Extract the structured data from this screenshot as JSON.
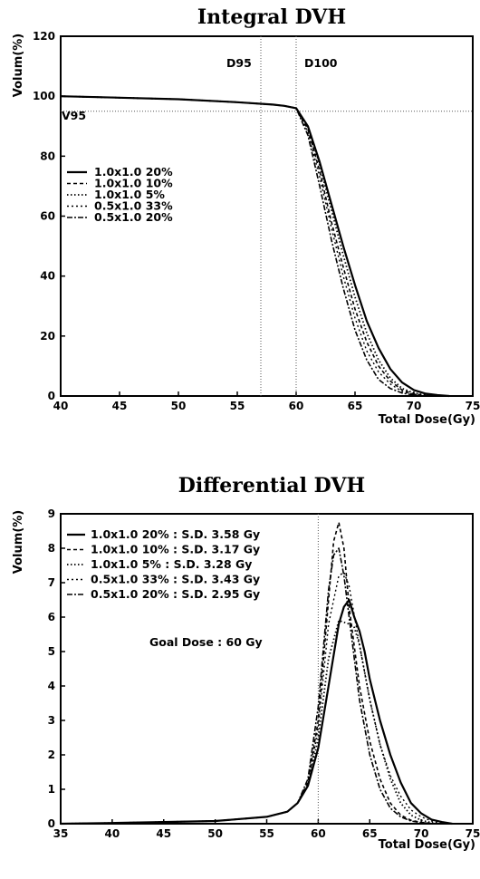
{
  "chart_data": [
    {
      "type": "line",
      "title": "Integral DVH",
      "xlabel": "Total Dose(Gy)",
      "ylabel": "Volum(%)",
      "xlim": [
        40,
        75
      ],
      "ylim": [
        0,
        120
      ],
      "xticks": [
        40,
        45,
        50,
        55,
        60,
        65,
        70,
        75
      ],
      "yticks": [
        0,
        20,
        40,
        60,
        80,
        100,
        120
      ],
      "grid": false,
      "legend_placement": "left",
      "annotations": {
        "vertical_lines": [
          {
            "label": "D95",
            "x": 57
          },
          {
            "label": "D100",
            "x": 60
          }
        ],
        "horizontal_lines": [
          {
            "label": "V95",
            "y": 95
          }
        ]
      },
      "series": [
        {
          "name": "1.0x1.0 20%",
          "x": [
            40,
            45,
            50,
            55,
            58,
            59,
            60,
            61,
            62,
            63,
            64,
            65,
            66,
            67,
            68,
            69,
            70,
            71,
            72,
            73
          ],
          "y": [
            100,
            99.5,
            99,
            98,
            97.2,
            96.8,
            96,
            90,
            78,
            64,
            50,
            37,
            25,
            16,
            9,
            4.5,
            2,
            0.8,
            0.3,
            0
          ]
        },
        {
          "name": "1.0x1.0 10%",
          "x": [
            40,
            45,
            50,
            55,
            58,
            59,
            60,
            61,
            62,
            63,
            64,
            65,
            66,
            67,
            68,
            69,
            70,
            71,
            72
          ],
          "y": [
            100,
            99.5,
            99,
            98,
            97.2,
            96.8,
            96,
            89,
            75,
            58,
            43,
            29,
            18,
            10,
            5,
            2,
            0.7,
            0.2,
            0
          ]
        },
        {
          "name": "1.0x1.0  5%",
          "x": [
            40,
            45,
            50,
            55,
            58,
            59,
            60,
            61,
            62,
            63,
            64,
            65,
            66,
            67,
            68,
            69,
            70,
            71,
            72
          ],
          "y": [
            100,
            99.5,
            99,
            98,
            97.2,
            96.8,
            96,
            90,
            77,
            62,
            47,
            33,
            21,
            12,
            6,
            2.5,
            1,
            0.3,
            0
          ]
        },
        {
          "name": "0.5x1.0 33%",
          "x": [
            40,
            45,
            50,
            55,
            58,
            59,
            60,
            61,
            62,
            63,
            64,
            65,
            66,
            67,
            68,
            69,
            70,
            71,
            72
          ],
          "y": [
            100,
            99.5,
            99,
            98,
            97.2,
            96.8,
            96,
            88,
            73,
            56,
            40,
            26,
            15,
            8,
            4,
            1.5,
            0.5,
            0.1,
            0
          ]
        },
        {
          "name": "0.5x1.0 20%",
          "x": [
            40,
            45,
            50,
            55,
            58,
            59,
            60,
            61,
            62,
            63,
            64,
            65,
            66,
            67,
            68,
            69,
            70,
            71
          ],
          "y": [
            100,
            99.5,
            99,
            98,
            97.2,
            96.8,
            96,
            87,
            70,
            52,
            36,
            22,
            12,
            5.5,
            2.5,
            1,
            0.3,
            0
          ]
        }
      ]
    },
    {
      "type": "line",
      "title": "Differential DVH",
      "xlabel": "Total Dose(Gy)",
      "ylabel": "Volum(%)",
      "xlim": [
        35,
        75
      ],
      "ylim": [
        0,
        9
      ],
      "xticks": [
        35,
        40,
        45,
        50,
        55,
        60,
        65,
        70,
        75
      ],
      "yticks": [
        0,
        1,
        2,
        3,
        4,
        5,
        6,
        7,
        8,
        9
      ],
      "grid": false,
      "legend_placement": "top-left",
      "annotations": {
        "text": "Goal Dose : 60 Gy",
        "vertical_lines": [
          {
            "x": 60
          }
        ]
      },
      "series": [
        {
          "name": "1.0x1.0 20%",
          "sd": "S.D. 3.58 Gy",
          "x": [
            35,
            40,
            45,
            50,
            55,
            57,
            58,
            59,
            60,
            61,
            62,
            62.5,
            63,
            63.5,
            64,
            64.5,
            65,
            66,
            67,
            68,
            69,
            70,
            71,
            72,
            73
          ],
          "y": [
            0,
            0.02,
            0.05,
            0.08,
            0.2,
            0.35,
            0.6,
            1.1,
            2.2,
            4.0,
            5.8,
            6.3,
            6.5,
            6.0,
            5.6,
            5.0,
            4.2,
            3.0,
            2.0,
            1.2,
            0.6,
            0.3,
            0.12,
            0.05,
            0
          ]
        },
        {
          "name": "1.0x1.0 10%",
          "sd": "S.D. 3.17 Gy",
          "x": [
            35,
            40,
            45,
            50,
            55,
            57,
            58,
            59,
            60,
            61,
            61.5,
            62,
            62.5,
            63,
            64,
            65,
            66,
            67,
            68,
            69,
            70,
            71,
            72
          ],
          "y": [
            0,
            0.02,
            0.05,
            0.08,
            0.2,
            0.35,
            0.6,
            1.2,
            3.0,
            6.5,
            8.2,
            8.75,
            8.0,
            6.3,
            4.0,
            2.4,
            1.3,
            0.6,
            0.25,
            0.1,
            0.04,
            0.01,
            0
          ]
        },
        {
          "name": "1.0x1.0  5%",
          "sd": "S.D. 3.28 Gy",
          "x": [
            35,
            40,
            45,
            50,
            55,
            57,
            58,
            59,
            60,
            61,
            62,
            62.5,
            63,
            63.5,
            64,
            65,
            66,
            67,
            68,
            69,
            70,
            71,
            72
          ],
          "y": [
            0,
            0.02,
            0.05,
            0.08,
            0.2,
            0.35,
            0.6,
            1.1,
            2.5,
            4.8,
            5.9,
            5.85,
            5.8,
            5.7,
            5.2,
            3.6,
            2.3,
            1.3,
            0.6,
            0.25,
            0.1,
            0.03,
            0
          ]
        },
        {
          "name": "0.5x1.0 33%",
          "sd": "S.D. 3.43 Gy",
          "x": [
            35,
            40,
            45,
            50,
            55,
            57,
            58,
            59,
            60,
            61,
            62,
            62.5,
            63,
            64,
            65,
            66,
            67,
            68,
            69,
            70,
            71,
            72,
            73
          ],
          "y": [
            0,
            0.02,
            0.05,
            0.08,
            0.2,
            0.35,
            0.6,
            1.1,
            2.8,
            5.8,
            7.2,
            7.3,
            6.9,
            5.2,
            3.6,
            2.3,
            1.4,
            0.8,
            0.4,
            0.2,
            0.08,
            0.03,
            0
          ]
        },
        {
          "name": "0.5x1.0 20%",
          "sd": "S.D. 2.95 Gy",
          "x": [
            35,
            40,
            45,
            50,
            55,
            57,
            58,
            59,
            60,
            61,
            61.5,
            62,
            62.5,
            63,
            64,
            65,
            66,
            67,
            68,
            69,
            70,
            71
          ],
          "y": [
            0,
            0.02,
            0.05,
            0.08,
            0.2,
            0.35,
            0.6,
            1.3,
            3.4,
            6.8,
            7.8,
            8.0,
            7.2,
            6.0,
            3.6,
            2.0,
            1.0,
            0.45,
            0.2,
            0.08,
            0.03,
            0
          ]
        }
      ]
    }
  ]
}
